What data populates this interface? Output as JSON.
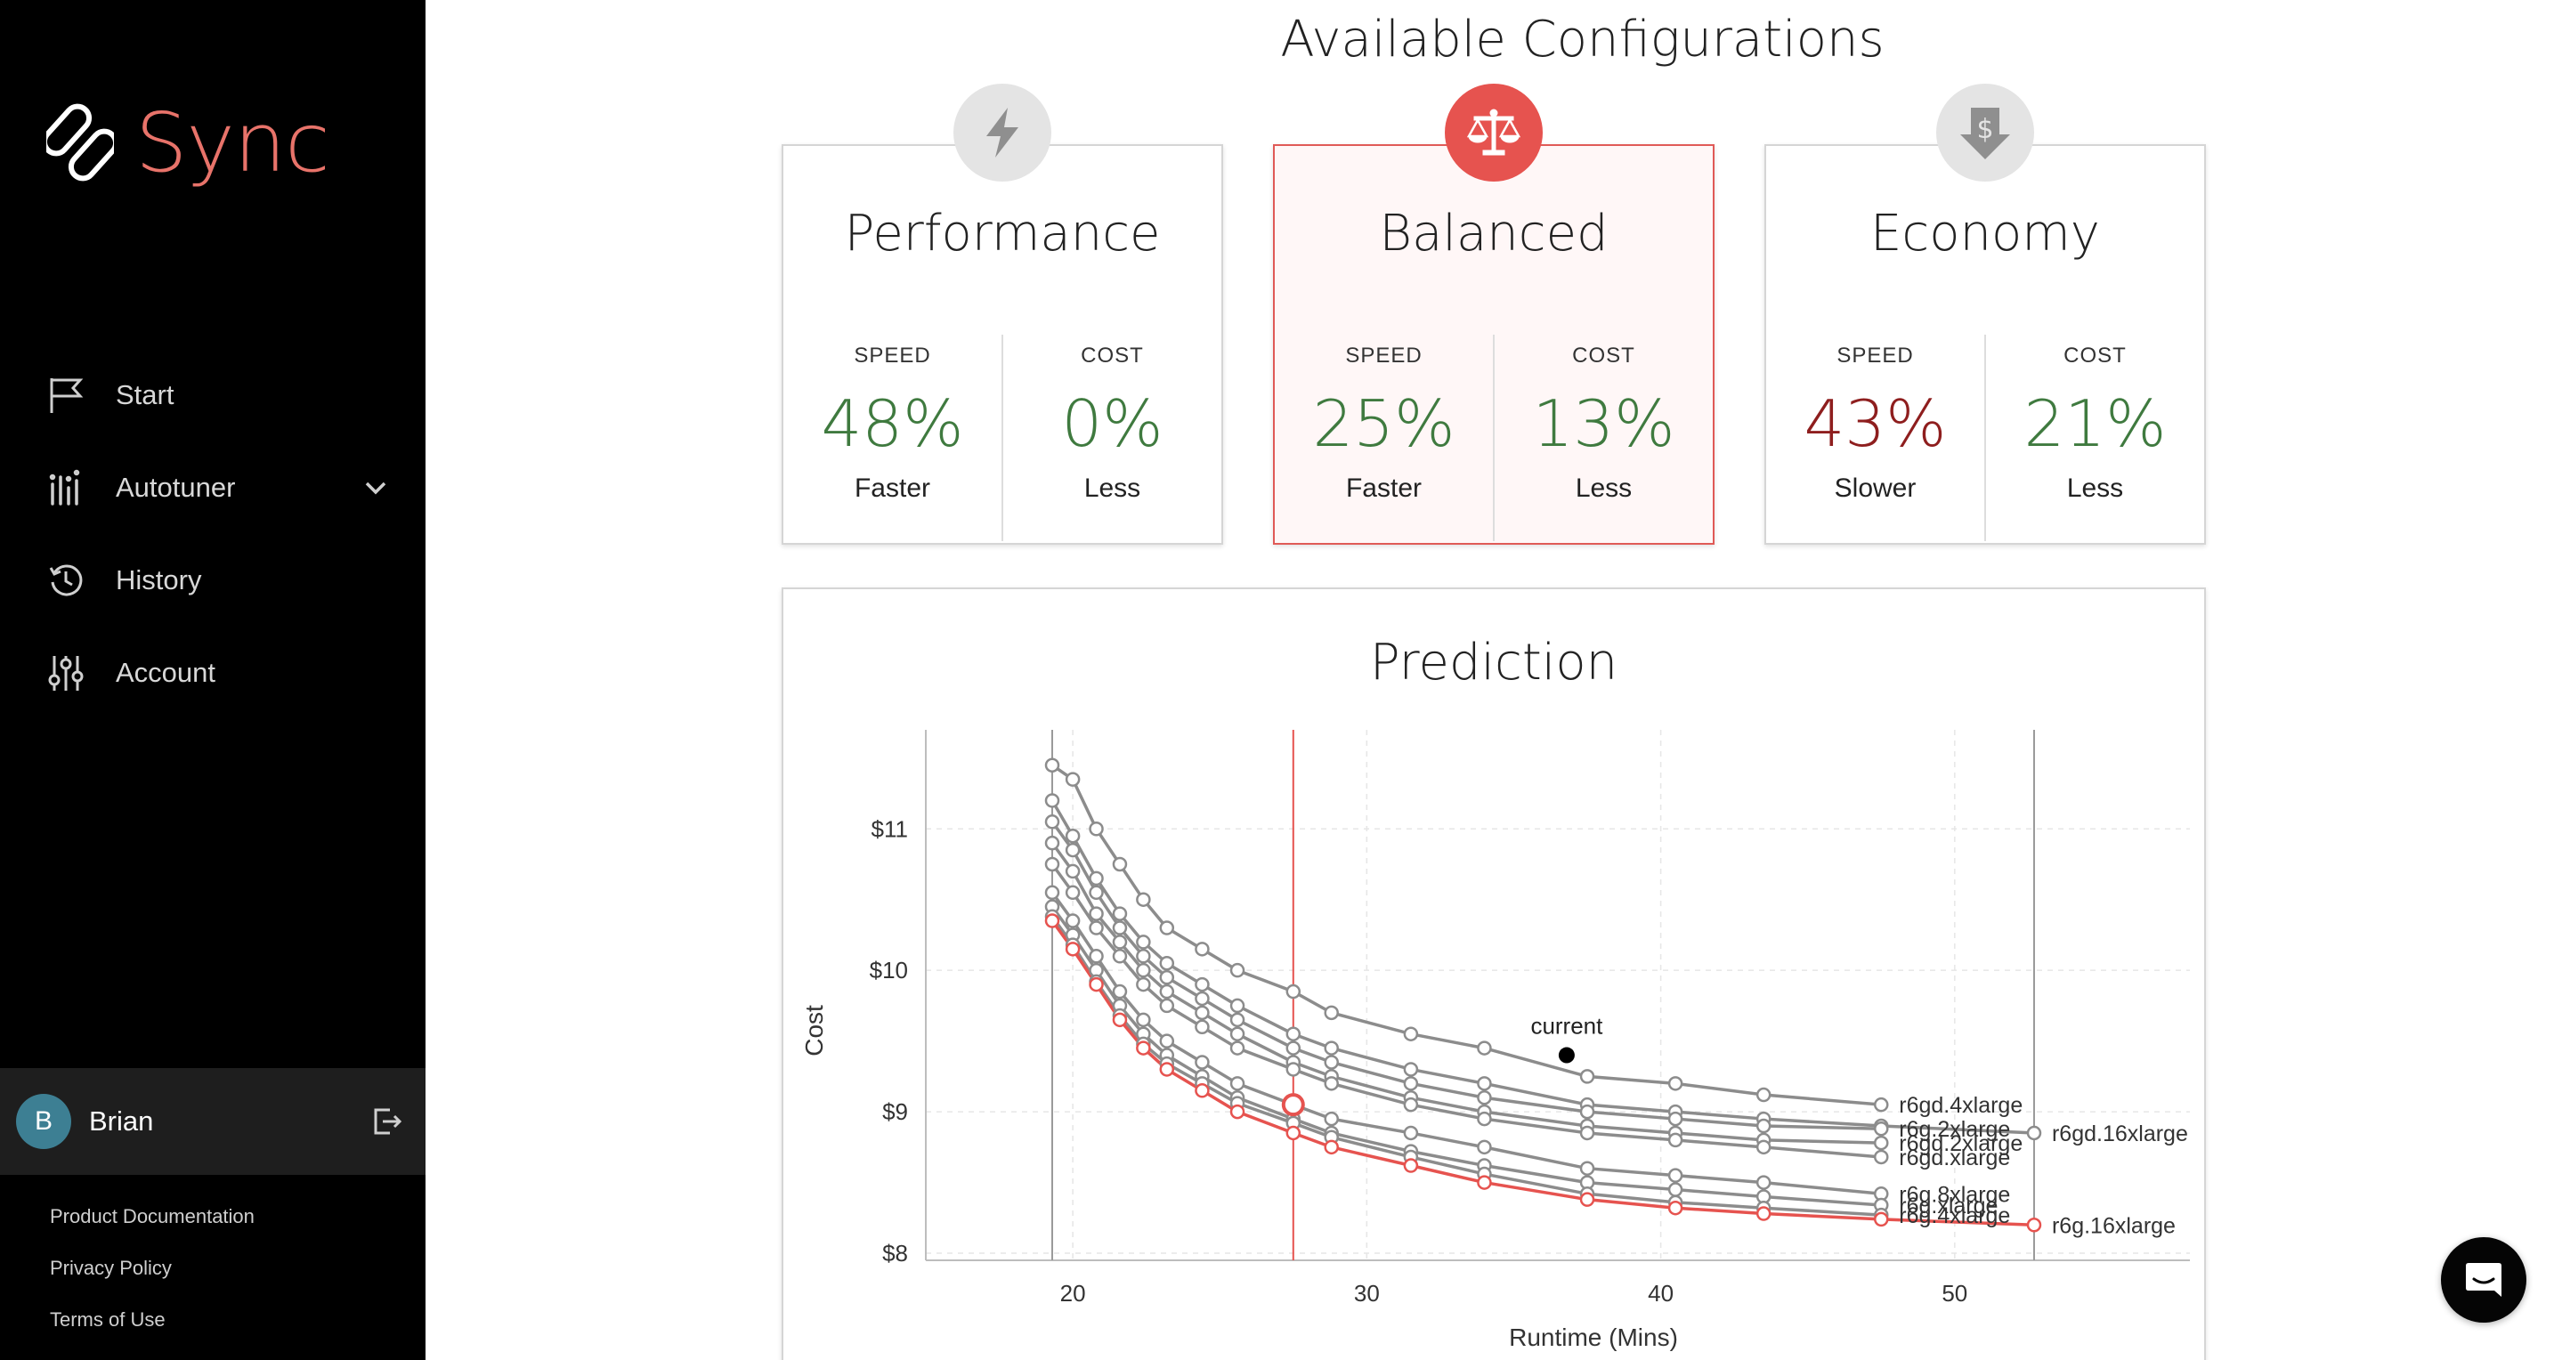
{
  "app": {
    "name": "Sync"
  },
  "sidebar": {
    "items": [
      {
        "label": "Start",
        "icon": "flag-icon"
      },
      {
        "label": "Autotuner",
        "icon": "bar-chart-icon",
        "expandable": true
      },
      {
        "label": "History",
        "icon": "history-icon"
      },
      {
        "label": "Account",
        "icon": "sliders-icon"
      }
    ],
    "user": {
      "initial": "B",
      "name": "Brian",
      "avatar_color": "#3d7f93"
    },
    "footer": [
      "Product Documentation",
      "Privacy Policy",
      "Terms of Use"
    ]
  },
  "main": {
    "title": "Available Configurations",
    "cards": [
      {
        "title": "Performance",
        "icon": "lightning-icon",
        "selected": false,
        "speed_label": "SPEED",
        "speed_value": "48%",
        "speed_sub": "Faster",
        "speed_status": "good",
        "cost_label": "COST",
        "cost_value": "0%",
        "cost_sub": "Less",
        "cost_status": "good"
      },
      {
        "title": "Balanced",
        "icon": "scales-icon",
        "selected": true,
        "speed_label": "SPEED",
        "speed_value": "25%",
        "speed_sub": "Faster",
        "speed_status": "good",
        "cost_label": "COST",
        "cost_value": "13%",
        "cost_sub": "Less",
        "cost_status": "good"
      },
      {
        "title": "Economy",
        "icon": "dollar-down-icon",
        "selected": false,
        "speed_label": "SPEED",
        "speed_value": "43%",
        "speed_sub": "Slower",
        "speed_status": "bad",
        "cost_label": "COST",
        "cost_value": "21%",
        "cost_sub": "Less",
        "cost_status": "good"
      }
    ],
    "prediction_title": "Prediction"
  },
  "colors": {
    "accent": "#e6534f",
    "good": "#3f7a3f",
    "bad": "#8e1e1e",
    "curve": "#8c8c8c"
  },
  "chart_data": {
    "type": "line",
    "xlabel": "Runtime (Mins)",
    "ylabel": "Cost",
    "xlim": [
      15,
      58
    ],
    "ylim": [
      7.95,
      11.7
    ],
    "xticks": [
      20,
      30,
      40,
      50
    ],
    "xtick_labels": [
      "20",
      "30",
      "40",
      "50"
    ],
    "yticks": [
      8,
      9,
      10,
      11
    ],
    "ytick_labels": [
      "$8",
      "$9",
      "$10",
      "$11"
    ],
    "boundary_lines_x": [
      19.3,
      52.7
    ],
    "selected_line_x": 27.5,
    "current_point": {
      "x": 36.8,
      "y": 9.4,
      "label": "current"
    },
    "selected_point": {
      "x": 27.5,
      "y": 9.05
    },
    "series": [
      {
        "name": "r6gd.4xlarge",
        "x": [
          19.3,
          20.0,
          20.8,
          21.6,
          22.4,
          23.2,
          24.4,
          25.6,
          27.5,
          28.8,
          31.5,
          34.0,
          37.5,
          40.5,
          43.5,
          47.5
        ],
        "y": [
          11.45,
          11.35,
          11.0,
          10.75,
          10.5,
          10.3,
          10.15,
          10.0,
          9.85,
          9.7,
          9.55,
          9.45,
          9.25,
          9.2,
          9.12,
          9.05
        ]
      },
      {
        "name": "r6gd.16xlarge",
        "x": [
          19.3,
          20.0,
          20.8,
          21.6,
          22.4,
          23.2,
          24.4,
          25.6,
          27.5,
          28.8,
          31.5,
          34.0,
          37.5,
          40.5,
          43.5,
          47.5,
          52.7
        ],
        "y": [
          11.2,
          10.95,
          10.65,
          10.4,
          10.2,
          10.05,
          9.9,
          9.75,
          9.55,
          9.45,
          9.3,
          9.2,
          9.05,
          9.0,
          8.95,
          8.9,
          8.85
        ]
      },
      {
        "name": "r6g.2xlarge",
        "x": [
          19.3,
          20.0,
          20.8,
          21.6,
          22.4,
          23.2,
          24.4,
          25.6,
          27.5,
          28.8,
          31.5,
          34.0,
          37.5,
          40.5,
          43.5,
          47.5
        ],
        "y": [
          11.05,
          10.85,
          10.55,
          10.3,
          10.1,
          9.95,
          9.8,
          9.65,
          9.45,
          9.35,
          9.2,
          9.1,
          9.0,
          8.95,
          8.9,
          8.88
        ]
      },
      {
        "name": "r6gd.2xlarge",
        "x": [
          19.3,
          20.0,
          20.8,
          21.6,
          22.4,
          23.2,
          24.4,
          25.6,
          27.5,
          28.8,
          31.5,
          34.0,
          37.5,
          40.5,
          43.5,
          47.5
        ],
        "y": [
          10.9,
          10.7,
          10.4,
          10.2,
          10.0,
          9.85,
          9.7,
          9.55,
          9.35,
          9.25,
          9.1,
          9.0,
          8.9,
          8.85,
          8.8,
          8.78
        ]
      },
      {
        "name": "r6gd.xlarge",
        "x": [
          19.3,
          20.0,
          20.8,
          21.6,
          22.4,
          23.2,
          24.4,
          25.6,
          27.5,
          28.8,
          31.5,
          34.0,
          37.5,
          40.5,
          43.5,
          47.5
        ],
        "y": [
          10.75,
          10.55,
          10.3,
          10.1,
          9.9,
          9.75,
          9.6,
          9.45,
          9.3,
          9.2,
          9.05,
          8.95,
          8.85,
          8.8,
          8.75,
          8.68
        ]
      },
      {
        "name": "r6g.8xlarge",
        "x": [
          19.3,
          20.0,
          20.8,
          21.6,
          22.4,
          23.2,
          24.4,
          25.6,
          27.5,
          28.8,
          31.5,
          34.0,
          37.5,
          40.5,
          43.5,
          47.5
        ],
        "y": [
          10.55,
          10.35,
          10.1,
          9.85,
          9.65,
          9.5,
          9.35,
          9.2,
          9.05,
          8.95,
          8.85,
          8.75,
          8.6,
          8.55,
          8.5,
          8.42
        ]
      },
      {
        "name": "r6g.xlarge",
        "x": [
          19.3,
          20.0,
          20.8,
          21.6,
          22.4,
          23.2,
          24.4,
          25.6,
          27.5,
          28.8,
          31.5,
          34.0,
          37.5,
          40.5,
          43.5,
          47.5
        ],
        "y": [
          10.45,
          10.25,
          10.0,
          9.75,
          9.55,
          9.4,
          9.25,
          9.1,
          8.95,
          8.85,
          8.72,
          8.62,
          8.5,
          8.45,
          8.4,
          8.34
        ]
      },
      {
        "name": "r6g.4xlarge",
        "x": [
          19.3,
          20.0,
          20.8,
          21.6,
          22.4,
          23.2,
          24.4,
          25.6,
          27.5,
          28.8,
          31.5,
          34.0,
          37.5,
          40.5,
          43.5,
          47.5
        ],
        "y": [
          10.38,
          10.18,
          9.92,
          9.68,
          9.48,
          9.34,
          9.2,
          9.06,
          8.92,
          8.82,
          8.68,
          8.56,
          8.42,
          8.36,
          8.32,
          8.27
        ]
      },
      {
        "name": "r6g.16xlarge",
        "selected": true,
        "x": [
          19.3,
          20.0,
          20.8,
          21.6,
          22.4,
          23.2,
          24.4,
          25.6,
          27.5,
          28.8,
          31.5,
          34.0,
          37.5,
          40.5,
          43.5,
          47.5,
          52.7
        ],
        "y": [
          10.35,
          10.15,
          9.9,
          9.65,
          9.45,
          9.3,
          9.15,
          9.0,
          8.85,
          8.75,
          8.62,
          8.5,
          8.38,
          8.32,
          8.28,
          8.24,
          8.2
        ]
      }
    ],
    "annotations": [
      {
        "text": "r6gd.4xlarge",
        "x": 47.5,
        "y": 9.05
      },
      {
        "text": "r6g.2xlarge",
        "x": 47.5,
        "y": 8.88
      },
      {
        "text": "r6gd.2xlarge",
        "x": 47.5,
        "y": 8.78
      },
      {
        "text": "r6gd.xlarge",
        "x": 47.5,
        "y": 8.68
      },
      {
        "text": "r6gd.16xlarge",
        "x": 52.7,
        "y": 8.85
      },
      {
        "text": "r6g.8xlarge",
        "x": 47.5,
        "y": 8.42
      },
      {
        "text": "r6g.xlarge",
        "x": 47.5,
        "y": 8.34
      },
      {
        "text": "r6g.4xlarge",
        "x": 47.5,
        "y": 8.27
      },
      {
        "text": "r6g.16xlarge",
        "x": 52.7,
        "y": 8.2
      }
    ]
  }
}
